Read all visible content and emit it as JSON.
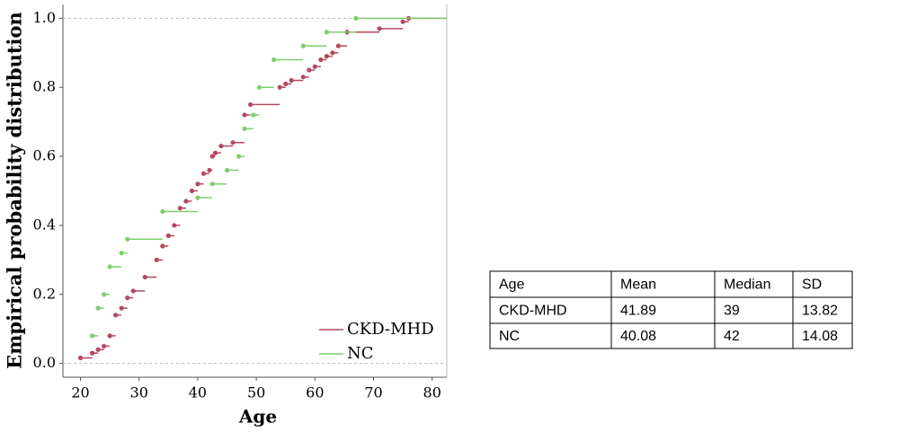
{
  "chart_data": {
    "type": "step",
    "xlabel": "Age",
    "ylabel": "Empirical probability distribution",
    "xlim": [
      17,
      82.5
    ],
    "xticks": [
      20,
      30,
      40,
      50,
      60,
      70,
      80
    ],
    "ylim": [
      -0.04,
      1.04
    ],
    "yticks": [
      {
        "value": 0,
        "label": "0.0"
      },
      0.2,
      0.4,
      0.6,
      0.8,
      {
        "value": 1,
        "label": "1.0"
      }
    ],
    "legend": "lower right",
    "series": [
      {
        "name": "CKD-MHD",
        "color": "#b5485f",
        "x": [
          20,
          22,
          23,
          24,
          25,
          26,
          27,
          28,
          29,
          31,
          33,
          34,
          35,
          36,
          37,
          38,
          39,
          40,
          41,
          42,
          42.5,
          43,
          44,
          46,
          48,
          49,
          54,
          55,
          56,
          58,
          59,
          60,
          61,
          62,
          63,
          64,
          65.5,
          71,
          75,
          76
        ],
        "values": [
          0.016,
          0.03,
          0.04,
          0.05,
          0.08,
          0.14,
          0.16,
          0.19,
          0.21,
          0.25,
          0.3,
          0.34,
          0.37,
          0.4,
          0.45,
          0.47,
          0.5,
          0.52,
          0.55,
          0.56,
          0.6,
          0.61,
          0.63,
          0.64,
          0.72,
          0.75,
          0.8,
          0.81,
          0.82,
          0.83,
          0.85,
          0.86,
          0.88,
          0.89,
          0.9,
          0.92,
          0.96,
          0.97,
          0.99,
          1
        ]
      },
      {
        "name": "NC",
        "color": "#7ccf6c",
        "x": [
          22,
          23,
          24,
          25,
          27,
          28,
          34,
          40,
          42.5,
          45,
          47,
          48,
          49.5,
          50.5,
          53,
          58,
          62,
          67
        ],
        "values": [
          0.08,
          0.16,
          0.2,
          0.28,
          0.32,
          0.36,
          0.44,
          0.48,
          0.52,
          0.56,
          0.6,
          0.68,
          0.72,
          0.8,
          0.88,
          0.92,
          0.96,
          1
        ]
      }
    ]
  },
  "table": {
    "header": [
      "Age",
      "Mean",
      "Median",
      "SD"
    ],
    "rows": [
      [
        "CKD-MHD",
        41.89,
        39,
        13.82
      ],
      [
        "NC",
        40.08,
        42,
        14.08
      ]
    ]
  }
}
